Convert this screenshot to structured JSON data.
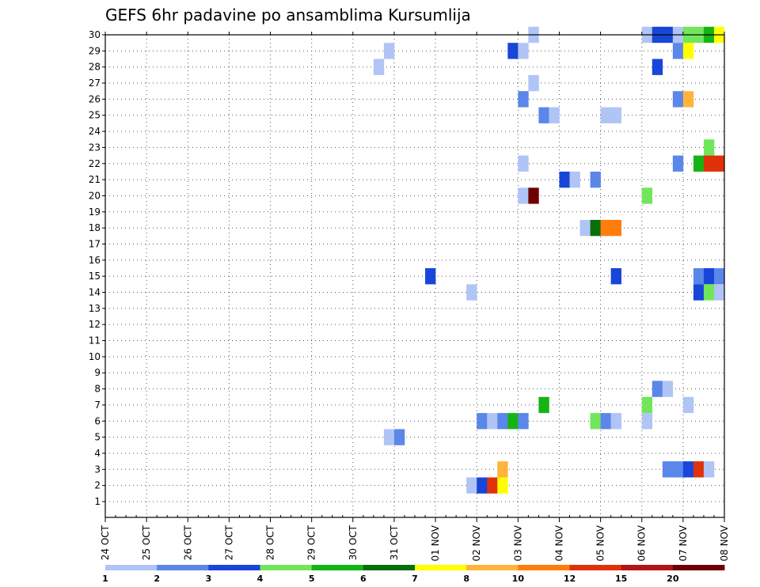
{
  "chart_data": {
    "type": "heatmap",
    "title": "GEFS 6hr padavine po ansamblima Kursumlija",
    "xlabel": "",
    "ylabel": "",
    "x_tick_labels": [
      "24 OCT",
      "25 OCT",
      "26 OCT",
      "27 OCT",
      "28 OCT",
      "29 OCT",
      "30 OCT",
      "31 OCT",
      "01 NOV",
      "02 NOV",
      "03 NOV",
      "04 NOV",
      "05 NOV",
      "06 NOV",
      "07 NOV",
      "08 NOV"
    ],
    "y_tick_labels": [
      "1",
      "2",
      "3",
      "4",
      "5",
      "6",
      "7",
      "8",
      "9",
      "10",
      "11",
      "12",
      "13",
      "14",
      "15",
      "16",
      "17",
      "18",
      "19",
      "20",
      "21",
      "22",
      "23",
      "24",
      "25",
      "26",
      "27",
      "28",
      "29",
      "30"
    ],
    "x_range_days": [
      0,
      15
    ],
    "y_range": [
      1,
      30
    ],
    "time_step_hours": 6,
    "grid": true,
    "legend_position": "bottom",
    "legend_labels": [
      "1",
      "2",
      "3",
      "4",
      "5",
      "6",
      "7",
      "8",
      "10",
      "12",
      "15",
      "20"
    ],
    "legend_colors": [
      "#b0c4f5",
      "#5b87ea",
      "#1746d8",
      "#72e65a",
      "#14b414",
      "#0a6e0a",
      "#ffff00",
      "#ffb43c",
      "#ff7d0a",
      "#e0320a",
      "#b41414",
      "#6e0000"
    ],
    "cells": [
      {
        "member": 30,
        "day": 10.25,
        "color": "#b0c4f5"
      },
      {
        "member": 30,
        "day": 13.0,
        "color": "#b0c4f5"
      },
      {
        "member": 30,
        "day": 13.25,
        "color": "#1746d8"
      },
      {
        "member": 30,
        "day": 13.5,
        "color": "#1746d8"
      },
      {
        "member": 30,
        "day": 13.75,
        "color": "#b0c4f5"
      },
      {
        "member": 30,
        "day": 14.0,
        "color": "#72e65a"
      },
      {
        "member": 30,
        "day": 14.25,
        "color": "#72e65a"
      },
      {
        "member": 30,
        "day": 14.5,
        "color": "#14b414"
      },
      {
        "member": 30,
        "day": 14.75,
        "color": "#ffff00"
      },
      {
        "member": 29,
        "day": 6.75,
        "color": "#b0c4f5"
      },
      {
        "member": 29,
        "day": 9.75,
        "color": "#1746d8"
      },
      {
        "member": 29,
        "day": 10.0,
        "color": "#b0c4f5"
      },
      {
        "member": 29,
        "day": 13.75,
        "color": "#5b87ea"
      },
      {
        "member": 29,
        "day": 14.0,
        "color": "#ffff00"
      },
      {
        "member": 28,
        "day": 6.5,
        "color": "#b0c4f5"
      },
      {
        "member": 28,
        "day": 13.25,
        "color": "#1746d8"
      },
      {
        "member": 27,
        "day": 10.25,
        "color": "#b0c4f5"
      },
      {
        "member": 26,
        "day": 10.0,
        "color": "#5b87ea"
      },
      {
        "member": 26,
        "day": 13.75,
        "color": "#5b87ea"
      },
      {
        "member": 26,
        "day": 14.0,
        "color": "#ffb43c"
      },
      {
        "member": 25,
        "day": 10.5,
        "color": "#5b87ea"
      },
      {
        "member": 25,
        "day": 10.75,
        "color": "#b0c4f5"
      },
      {
        "member": 25,
        "day": 12.0,
        "color": "#b0c4f5"
      },
      {
        "member": 25,
        "day": 12.25,
        "color": "#b0c4f5"
      },
      {
        "member": 23,
        "day": 14.5,
        "color": "#72e65a"
      },
      {
        "member": 22,
        "day": 10.0,
        "color": "#b0c4f5"
      },
      {
        "member": 22,
        "day": 13.75,
        "color": "#5b87ea"
      },
      {
        "member": 22,
        "day": 14.25,
        "color": "#14b414"
      },
      {
        "member": 22,
        "day": 14.5,
        "color": "#e0320a"
      },
      {
        "member": 22,
        "day": 14.75,
        "color": "#e0320a"
      },
      {
        "member": 21,
        "day": 11.0,
        "color": "#1746d8"
      },
      {
        "member": 21,
        "day": 11.25,
        "color": "#b0c4f5"
      },
      {
        "member": 21,
        "day": 11.75,
        "color": "#5b87ea"
      },
      {
        "member": 20,
        "day": 10.0,
        "color": "#b0c4f5"
      },
      {
        "member": 20,
        "day": 10.25,
        "color": "#6e0000"
      },
      {
        "member": 20,
        "day": 13.0,
        "color": "#72e65a"
      },
      {
        "member": 18,
        "day": 11.5,
        "color": "#b0c4f5"
      },
      {
        "member": 18,
        "day": 11.75,
        "color": "#0a6e0a"
      },
      {
        "member": 18,
        "day": 12.0,
        "color": "#ff7d0a"
      },
      {
        "member": 18,
        "day": 12.25,
        "color": "#ff7d0a"
      },
      {
        "member": 15,
        "day": 7.75,
        "color": "#1746d8"
      },
      {
        "member": 15,
        "day": 12.25,
        "color": "#1746d8"
      },
      {
        "member": 15,
        "day": 14.25,
        "color": "#5b87ea"
      },
      {
        "member": 15,
        "day": 14.5,
        "color": "#1746d8"
      },
      {
        "member": 15,
        "day": 14.75,
        "color": "#5b87ea"
      },
      {
        "member": 14,
        "day": 8.75,
        "color": "#b0c4f5"
      },
      {
        "member": 14,
        "day": 14.25,
        "color": "#1746d8"
      },
      {
        "member": 14,
        "day": 14.5,
        "color": "#72e65a"
      },
      {
        "member": 14,
        "day": 14.75,
        "color": "#b0c4f5"
      },
      {
        "member": 8,
        "day": 13.25,
        "color": "#5b87ea"
      },
      {
        "member": 8,
        "day": 13.5,
        "color": "#b0c4f5"
      },
      {
        "member": 7,
        "day": 10.5,
        "color": "#14b414"
      },
      {
        "member": 7,
        "day": 13.0,
        "color": "#72e65a"
      },
      {
        "member": 7,
        "day": 14.0,
        "color": "#b0c4f5"
      },
      {
        "member": 6,
        "day": 9.0,
        "color": "#5b87ea"
      },
      {
        "member": 6,
        "day": 9.25,
        "color": "#b0c4f5"
      },
      {
        "member": 6,
        "day": 9.5,
        "color": "#5b87ea"
      },
      {
        "member": 6,
        "day": 9.75,
        "color": "#14b414"
      },
      {
        "member": 6,
        "day": 10.0,
        "color": "#5b87ea"
      },
      {
        "member": 6,
        "day": 11.75,
        "color": "#72e65a"
      },
      {
        "member": 6,
        "day": 12.0,
        "color": "#5b87ea"
      },
      {
        "member": 6,
        "day": 12.25,
        "color": "#b0c4f5"
      },
      {
        "member": 6,
        "day": 13.0,
        "color": "#b0c4f5"
      },
      {
        "member": 5,
        "day": 6.75,
        "color": "#b0c4f5"
      },
      {
        "member": 5,
        "day": 7.0,
        "color": "#5b87ea"
      },
      {
        "member": 3,
        "day": 9.5,
        "color": "#ffb43c"
      },
      {
        "member": 3,
        "day": 13.5,
        "color": "#5b87ea"
      },
      {
        "member": 3,
        "day": 13.75,
        "color": "#5b87ea"
      },
      {
        "member": 3,
        "day": 14.0,
        "color": "#1746d8"
      },
      {
        "member": 3,
        "day": 14.25,
        "color": "#e0320a"
      },
      {
        "member": 3,
        "day": 14.5,
        "color": "#b0c4f5"
      },
      {
        "member": 2,
        "day": 8.75,
        "color": "#b0c4f5"
      },
      {
        "member": 2,
        "day": 9.0,
        "color": "#1746d8"
      },
      {
        "member": 2,
        "day": 9.25,
        "color": "#e0320a"
      },
      {
        "member": 2,
        "day": 9.5,
        "color": "#ffff00"
      }
    ]
  }
}
